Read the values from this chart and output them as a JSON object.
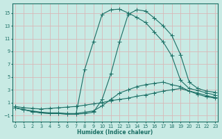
{
  "xlabel": "Humidex (Indice chaleur)",
  "bg_color": "#c8eae4",
  "grid_color": "#d8b8b8",
  "line_color": "#1a6e64",
  "xlim": [
    -0.3,
    23.3
  ],
  "ylim": [
    -2.0,
    16.5
  ],
  "xticks": [
    0,
    1,
    2,
    3,
    4,
    5,
    6,
    7,
    8,
    9,
    10,
    11,
    12,
    13,
    14,
    15,
    16,
    17,
    18,
    19,
    20,
    21,
    22,
    23
  ],
  "yticks": [
    -1,
    1,
    3,
    5,
    7,
    9,
    11,
    13,
    15
  ],
  "lines": [
    {
      "x": [
        0,
        1,
        2,
        3,
        4,
        5,
        6,
        7,
        8,
        9,
        10,
        11,
        12,
        13,
        14,
        15,
        16,
        17,
        18,
        19,
        20,
        21,
        22,
        23
      ],
      "y": [
        0.4,
        0.2,
        0.1,
        0.0,
        0.1,
        0.2,
        0.3,
        0.4,
        0.6,
        0.8,
        1.0,
        1.3,
        1.5,
        1.7,
        2.0,
        2.2,
        2.5,
        2.8,
        3.0,
        3.2,
        2.8,
        2.5,
        2.1,
        1.8
      ]
    },
    {
      "x": [
        0,
        1,
        2,
        3,
        4,
        5,
        6,
        7,
        8,
        9,
        10,
        11,
        12,
        13,
        14,
        15,
        16,
        17,
        18,
        19,
        20,
        21,
        22,
        23
      ],
      "y": [
        0.2,
        -0.1,
        -0.3,
        -0.5,
        -0.6,
        -0.6,
        -0.7,
        -0.7,
        -0.5,
        -0.3,
        0.5,
        1.5,
        2.5,
        3.0,
        3.5,
        3.8,
        4.0,
        4.2,
        3.8,
        3.5,
        2.8,
        2.3,
        1.9,
        1.7
      ]
    },
    {
      "x": [
        0,
        1,
        2,
        3,
        4,
        5,
        6,
        7,
        8,
        9,
        10,
        11,
        12,
        13,
        14,
        15,
        16,
        17,
        18,
        19,
        20,
        21,
        22,
        23
      ],
      "y": [
        0.2,
        -0.1,
        -0.4,
        -0.6,
        -0.7,
        -0.7,
        -0.8,
        -0.8,
        -0.7,
        -0.5,
        1.5,
        5.5,
        10.5,
        14.8,
        15.5,
        15.3,
        14.2,
        13.0,
        11.5,
        8.5,
        4.2,
        3.2,
        2.8,
        2.6
      ]
    },
    {
      "x": [
        0,
        1,
        2,
        3,
        4,
        5,
        6,
        7,
        8,
        9,
        10,
        11,
        12,
        13,
        14,
        15,
        16,
        17,
        18,
        19,
        20,
        21,
        22,
        23
      ],
      "y": [
        0.2,
        -0.1,
        -0.4,
        -0.6,
        -0.7,
        -0.7,
        -0.8,
        -0.8,
        6.2,
        10.5,
        14.8,
        15.5,
        15.6,
        15.0,
        14.3,
        13.5,
        12.0,
        10.5,
        8.3,
        4.5,
        3.2,
        2.9,
        2.5,
        2.2
      ]
    }
  ]
}
